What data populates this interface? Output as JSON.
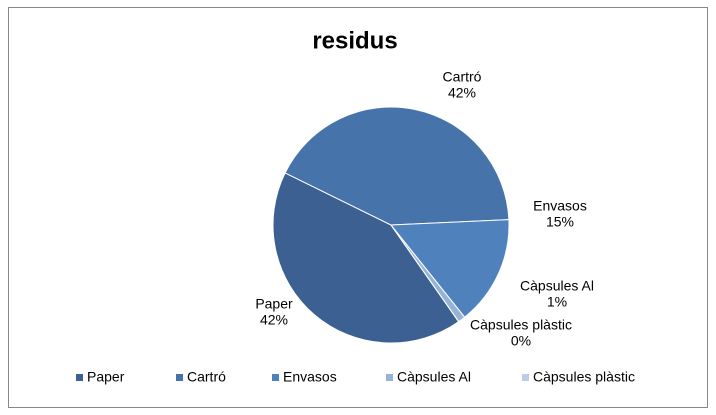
{
  "chart_data": {
    "type": "pie",
    "title": "residus",
    "categories": [
      "Paper",
      "Cartró",
      "Envasos",
      "Càpsules Al",
      "Càpsules plàstic"
    ],
    "values": [
      42,
      42,
      15,
      1,
      0
    ],
    "value_labels": [
      "42%",
      "42%",
      "15%",
      "1%",
      "0%"
    ],
    "colors": [
      "#3c6091",
      "#4674aa",
      "#4f81bd",
      "#95b3d7",
      "#b9cde5"
    ],
    "legend": "bottom"
  }
}
